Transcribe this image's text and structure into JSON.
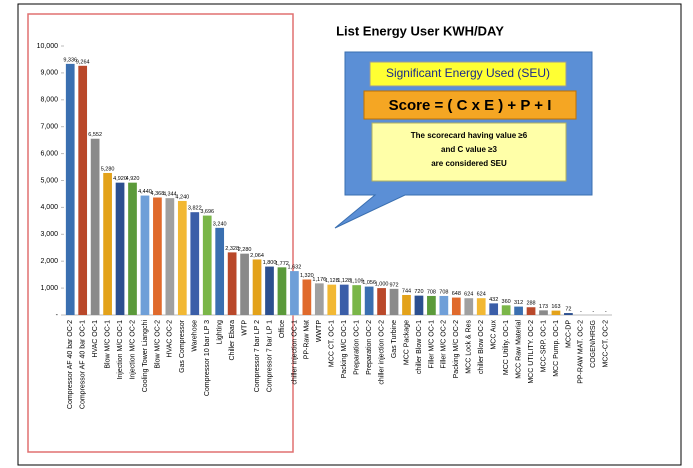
{
  "chart_data": {
    "type": "bar",
    "title": "List Energy User KWH/DAY",
    "categories": [
      "Compressor AF 40 bar OC-2",
      "Compressor AF 40 bar OC-1",
      "HVAC OC-1",
      "Blow M/C OC-1",
      "Injection M/C OC-1",
      "Injection M/C OC-2",
      "Cooling Tower Liangchi",
      "Blow M/C OC-2",
      "HVAC OC-2",
      "Gas Compressor",
      "Warehose",
      "Compressor 10 bar LP 3",
      "Lighting",
      "Chiller Ebara",
      "WTP",
      "Compressor 7 bar LP 2",
      "Compressor 7 bar LP 1",
      "Office",
      "chiller injection OC-1",
      "PP-Raw Mat",
      "WWTP",
      "MCC CT. OC-1",
      "Packing M/C OC-1",
      "Preparation OC-1",
      "Preparation OC-2",
      "chiller injection OC-2",
      "Gas Turbine",
      "MCC Package",
      "chiller Blow OC-1",
      "Filler M/C OC-1",
      "Filler M/C OC-2",
      "Packing M/C OC-2",
      "MCC Lock & Res",
      "chiller Blow OC-2",
      "MCC Aux",
      "MCC Utility. OC-1",
      "MCC Raw Material",
      "MCC UTILITY. OC-2",
      "MCC-SRP. OC-1",
      "MCC Pump. OC-1",
      "MCC-DP",
      "PP-RAW MAT. OC-2",
      "COGEN/HRSG",
      "MCC-CT. OC-2"
    ],
    "values": [
      9336,
      9264,
      6552,
      5280,
      4920,
      4920,
      4440,
      4368,
      4344,
      4240,
      3822,
      3696,
      3240,
      2328,
      2280,
      2064,
      1800,
      1772,
      1632,
      1320,
      1176,
      1128,
      1128,
      1109,
      1056,
      1000,
      972,
      744,
      720,
      708,
      708,
      648,
      624,
      624,
      432,
      360,
      312,
      288,
      173,
      163,
      72,
      0,
      0,
      0
    ],
    "value_labels": [
      "9,336",
      "9,264",
      "6,552",
      "5,280",
      "4,920",
      "4,920",
      "4,440",
      "4,368",
      "4,344",
      "4,240",
      "3,822",
      "3,696",
      "3,240",
      "2,328",
      "2,280",
      "2,064",
      "1,800",
      "1,772",
      "1,632",
      "1,320",
      "1,176",
      "1,128",
      "1,128",
      "1,109",
      "1,056",
      "1,000",
      "972",
      "744",
      "720",
      "708",
      "708",
      "648",
      "624",
      "624",
      "432",
      "360",
      "312",
      "288",
      "173",
      "163",
      "72",
      "-",
      "-",
      "-"
    ],
    "colors": [
      "#3a6fb0",
      "#b9482a",
      "#8a8a8a",
      "#e3a21a",
      "#2c4f8f",
      "#5b9a3a",
      "#6f9fd8",
      "#e06a2c",
      "#a0a0a0",
      "#f2b833",
      "#3b5ea8",
      "#7ab648"
    ],
    "ylim": [
      0,
      10000
    ],
    "yticks": [
      {
        "value": 0,
        "label": "-"
      },
      {
        "value": 1000,
        "label": "1,000"
      },
      {
        "value": 2000,
        "label": "2,000"
      },
      {
        "value": 3000,
        "label": "3,000"
      },
      {
        "value": 4000,
        "label": "4,000"
      },
      {
        "value": 5000,
        "label": "5,000"
      },
      {
        "value": 6000,
        "label": "6,000"
      },
      {
        "value": 7000,
        "label": "7,000"
      },
      {
        "value": 8000,
        "label": "8,000"
      },
      {
        "value": 9000,
        "label": "9,000"
      },
      {
        "value": 10000,
        "label": "10,000"
      }
    ],
    "callout": {
      "heading": "Significant Energy Used (SEU)",
      "formula": "Score = ( C x E ) + P + I",
      "notes": [
        "The scorecard having value ≥6",
        "and C value ≥3",
        "are considered SEU"
      ]
    }
  }
}
